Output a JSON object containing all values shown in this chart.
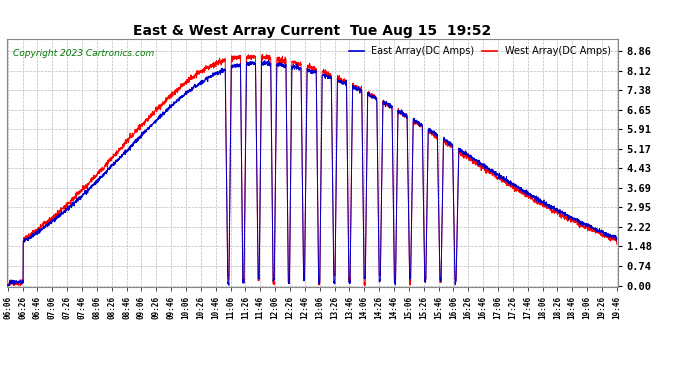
{
  "title": "East & West Array Current  Tue Aug 15  19:52",
  "copyright": "Copyright 2023 Cartronics.com",
  "legend_east": "East Array(DC Amps)",
  "legend_west": "West Array(DC Amps)",
  "east_color": "#0000CC",
  "west_color": "#FF0000",
  "background_color": "#FFFFFF",
  "grid_color": "#BBBBBB",
  "yticks": [
    0.0,
    0.74,
    1.48,
    2.22,
    2.95,
    3.69,
    4.43,
    5.17,
    5.91,
    6.65,
    7.38,
    8.12,
    8.86
  ],
  "ylim": [
    -0.05,
    9.3
  ],
  "x_start_min": 366,
  "x_end_min": 1186,
  "x_tick_interval_min": 20
}
